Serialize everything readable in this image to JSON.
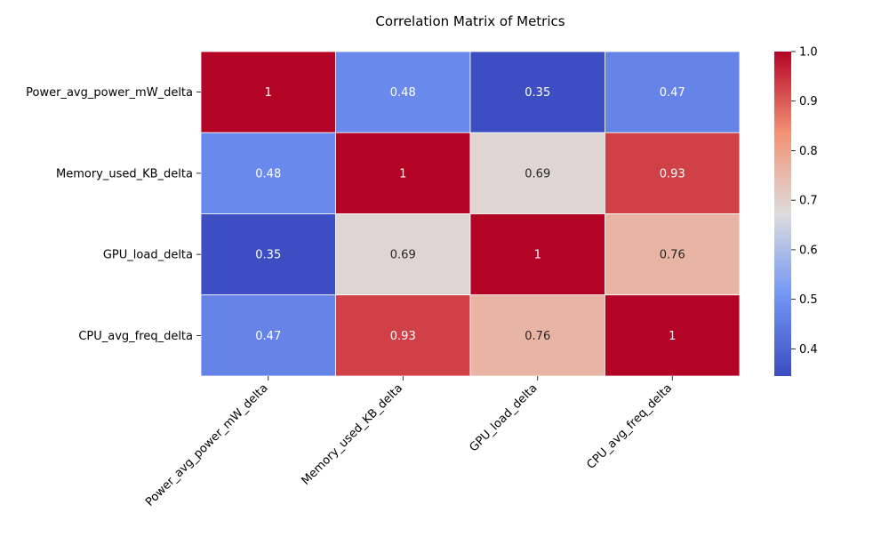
{
  "chart_data": {
    "type": "heatmap",
    "title": "Correlation Matrix of Metrics",
    "row_labels": [
      "Power_avg_power_mW_delta",
      "Memory_used_KB_delta",
      "GPU_load_delta",
      "CPU_avg_freq_delta"
    ],
    "col_labels": [
      "Power_avg_power_mW_delta",
      "Memory_used_KB_delta",
      "GPU_load_delta",
      "CPU_avg_freq_delta"
    ],
    "values": [
      [
        1,
        0.48,
        0.35,
        0.47
      ],
      [
        0.48,
        1,
        0.69,
        0.93
      ],
      [
        0.35,
        0.69,
        1,
        0.76
      ],
      [
        0.47,
        0.93,
        0.76,
        1
      ]
    ],
    "cell_labels": [
      [
        "1",
        "0.48",
        "0.35",
        "0.47"
      ],
      [
        "0.48",
        "1",
        "0.69",
        "0.93"
      ],
      [
        "0.35",
        "0.69",
        "1",
        "0.76"
      ],
      [
        "0.47",
        "0.93",
        "0.76",
        "1"
      ]
    ],
    "colormap": "coolwarm",
    "colorbar": {
      "range": [
        0.345,
        1.0
      ],
      "ticks": [
        0.4,
        0.5,
        0.6,
        0.7,
        0.8,
        0.9,
        1.0
      ],
      "tick_labels": [
        "0.4",
        "0.5",
        "0.6",
        "0.7",
        "0.8",
        "0.9",
        "1.0"
      ]
    },
    "colors": {
      "low": "#3b4cc0",
      "mid": "#dddddd",
      "high": "#b40426",
      "cell_border": "#ffffff",
      "text_light": "#ffffff",
      "text_dark": "#262626"
    }
  }
}
